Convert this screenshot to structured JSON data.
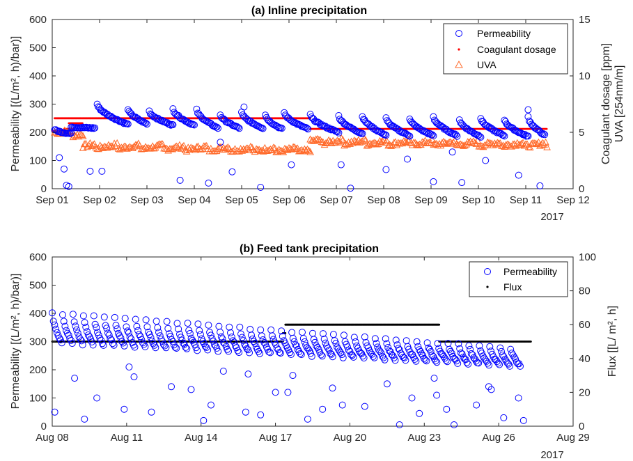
{
  "colors": {
    "permeability": "#0000ff",
    "coagulant": "#ff0000",
    "uva": "#ff6929",
    "flux": "#000000"
  },
  "chart_data": [
    {
      "type": "scatter",
      "title": "(a) Inline precipitation",
      "ylabel_left": "Permeability [(L/m², h)/bar)]",
      "ylabel_right": "Coagulant dosage [ppm]",
      "ylabel_right2": "UVA [254nm/m]",
      "year_label": "2017",
      "x_ticks": [
        "Sep 01",
        "Sep 02",
        "Sep 03",
        "Sep 04",
        "Sep 05",
        "Sep 06",
        "Sep 07",
        "Sep 08",
        "Sep 09",
        "Sep 10",
        "Sep 11",
        "Sep 12"
      ],
      "xlim": [
        1,
        12
      ],
      "ylim_left": [
        0,
        600
      ],
      "ylim_right": [
        0,
        15
      ],
      "y_ticks_left": [
        "0",
        "100",
        "200",
        "300",
        "400",
        "500",
        "600"
      ],
      "y_ticks_right": [
        "0",
        "5",
        "10",
        "15"
      ],
      "legend_position": "top-right",
      "legend": [
        "Permeability",
        "Coagulant dosage",
        "UVA"
      ],
      "series": [
        {
          "name": "Permeability",
          "axis": "left",
          "marker": "circle",
          "cycles": [
            {
              "start": 1.05,
              "end": 1.4,
              "from": 210,
              "to": 195
            },
            {
              "start": 1.4,
              "end": 1.9,
              "from": 220,
              "to": 215
            },
            {
              "start": 1.95,
              "end": 2.6,
              "from": 300,
              "to": 228
            },
            {
              "start": 2.6,
              "end": 3.0,
              "from": 282,
              "to": 230
            },
            {
              "start": 3.05,
              "end": 3.55,
              "from": 275,
              "to": 225
            },
            {
              "start": 3.55,
              "end": 4.0,
              "from": 283,
              "to": 225
            },
            {
              "start": 4.05,
              "end": 4.5,
              "from": 280,
              "to": 215
            },
            {
              "start": 4.55,
              "end": 4.95,
              "from": 262,
              "to": 215
            },
            {
              "start": 5.0,
              "end": 5.45,
              "from": 270,
              "to": 215
            },
            {
              "start": 5.5,
              "end": 5.85,
              "from": 262,
              "to": 212
            },
            {
              "start": 5.9,
              "end": 6.4,
              "from": 270,
              "to": 212
            },
            {
              "start": 6.45,
              "end": 7.05,
              "from": 262,
              "to": 200
            },
            {
              "start": 7.05,
              "end": 7.55,
              "from": 258,
              "to": 195
            },
            {
              "start": 7.55,
              "end": 8.05,
              "from": 258,
              "to": 190
            },
            {
              "start": 8.05,
              "end": 8.55,
              "from": 250,
              "to": 188
            },
            {
              "start": 8.55,
              "end": 9.05,
              "from": 248,
              "to": 188
            },
            {
              "start": 9.05,
              "end": 9.55,
              "from": 255,
              "to": 188
            },
            {
              "start": 9.6,
              "end": 10.05,
              "from": 245,
              "to": 185
            },
            {
              "start": 10.05,
              "end": 10.55,
              "from": 250,
              "to": 188
            },
            {
              "start": 10.55,
              "end": 11.05,
              "from": 245,
              "to": 185
            },
            {
              "start": 11.05,
              "end": 11.4,
              "from": 255,
              "to": 190
            }
          ],
          "outliers": [
            [
              1.15,
              110
            ],
            [
              1.25,
              70
            ],
            [
              1.3,
              12
            ],
            [
              1.35,
              8
            ],
            [
              1.8,
              62
            ],
            [
              2.05,
              62
            ],
            [
              3.7,
              30
            ],
            [
              4.3,
              20
            ],
            [
              4.55,
              165
            ],
            [
              4.8,
              60
            ],
            [
              5.05,
              290
            ],
            [
              5.4,
              5
            ],
            [
              6.05,
              85
            ],
            [
              7.1,
              85
            ],
            [
              7.3,
              2
            ],
            [
              8.05,
              68
            ],
            [
              8.5,
              105
            ],
            [
              9.05,
              25
            ],
            [
              9.45,
              130
            ],
            [
              9.65,
              22
            ],
            [
              10.15,
              100
            ],
            [
              10.85,
              48
            ],
            [
              11.05,
              280
            ],
            [
              11.3,
              10
            ]
          ]
        },
        {
          "name": "Coagulant dosage",
          "axis": "right",
          "marker": "dot",
          "segments": [
            {
              "x_start": 1.0,
              "x_end": 1.3,
              "y": 5.1
            },
            {
              "x_start": 1.25,
              "x_end": 1.45,
              "y": 5.3
            },
            {
              "x_start": 1.35,
              "x_end": 1.65,
              "y": 5.8
            },
            {
              "x_start": 1.05,
              "x_end": 6.45,
              "y": 6.25
            },
            {
              "x_start": 6.45,
              "x_end": 11.45,
              "y": 5.3
            }
          ]
        },
        {
          "name": "UVA",
          "axis": "right",
          "marker": "triangle",
          "levels": [
            {
              "x_start": 1.05,
              "x_end": 1.65,
              "from": 5.1,
              "to": 4.8
            },
            {
              "x_start": 1.65,
              "x_end": 6.45,
              "from": 3.8,
              "to": 3.4
            },
            {
              "x_start": 6.45,
              "x_end": 11.45,
              "from": 4.2,
              "to": 3.9
            }
          ]
        }
      ]
    },
    {
      "type": "scatter",
      "title": "(b) Feed tank precipitation",
      "ylabel_left": "Permeability [(L/m², h)/bar)]",
      "ylabel_right": "Flux [[L/ m², h]",
      "year_label": "2017",
      "x_ticks": [
        "Aug 08",
        "Aug 11",
        "Aug 14",
        "Aug 17",
        "Aug 20",
        "Aug 23",
        "Aug 26",
        "Aug 29"
      ],
      "x_tick_days": [
        8,
        11,
        14,
        17,
        20,
        23,
        26,
        29
      ],
      "xlim": [
        8,
        29
      ],
      "ylim_left": [
        0,
        600
      ],
      "ylim_right": [
        0,
        100
      ],
      "y_ticks_left": [
        "0",
        "100",
        "200",
        "300",
        "400",
        "500",
        "600"
      ],
      "y_ticks_right": [
        "0",
        "20",
        "40",
        "60",
        "80",
        "100"
      ],
      "legend_position": "top-right",
      "legend": [
        "Permeability",
        "Flux"
      ],
      "series": [
        {
          "name": "Permeability",
          "axis": "left",
          "marker": "circle",
          "cycle_start": 8.0,
          "cycle_end": 27.3,
          "cycle_length": 0.42,
          "top_start": 400,
          "top_end": 270,
          "bottom_start": 295,
          "bottom_end": 210,
          "outliers": [
            [
              8.1,
              50
            ],
            [
              8.9,
              170
            ],
            [
              9.3,
              25
            ],
            [
              9.8,
              100
            ],
            [
              10.9,
              60
            ],
            [
              11.1,
              210
            ],
            [
              11.3,
              175
            ],
            [
              12.0,
              50
            ],
            [
              12.8,
              140
            ],
            [
              13.6,
              130
            ],
            [
              14.1,
              20
            ],
            [
              14.4,
              75
            ],
            [
              14.9,
              195
            ],
            [
              15.8,
              50
            ],
            [
              15.9,
              185
            ],
            [
              16.4,
              40
            ],
            [
              17.0,
              120
            ],
            [
              17.5,
              120
            ],
            [
              17.7,
              180
            ],
            [
              18.3,
              25
            ],
            [
              18.9,
              60
            ],
            [
              19.3,
              135
            ],
            [
              19.7,
              75
            ],
            [
              20.6,
              70
            ],
            [
              21.5,
              150
            ],
            [
              22.0,
              5
            ],
            [
              22.5,
              100
            ],
            [
              22.8,
              45
            ],
            [
              23.4,
              170
            ],
            [
              23.5,
              110
            ],
            [
              23.9,
              60
            ],
            [
              24.2,
              5
            ],
            [
              25.1,
              75
            ],
            [
              25.6,
              140
            ],
            [
              25.7,
              130
            ],
            [
              26.2,
              30
            ],
            [
              26.8,
              100
            ],
            [
              27.0,
              20
            ]
          ]
        },
        {
          "name": "Flux",
          "axis": "right",
          "marker": "dot",
          "segments": [
            {
              "x_start": 8.0,
              "x_end": 17.3,
              "y": 50
            },
            {
              "x_start": 17.3,
              "x_end": 17.4,
              "y": 55
            },
            {
              "x_start": 17.4,
              "x_end": 23.6,
              "y": 60
            },
            {
              "x_start": 23.6,
              "x_end": 27.3,
              "y": 50
            }
          ]
        }
      ]
    }
  ]
}
